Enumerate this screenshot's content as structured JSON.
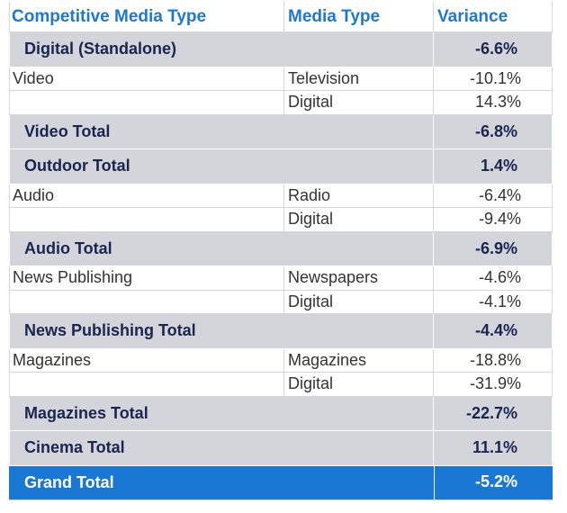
{
  "header": [
    "Competitive Media Type",
    "Media Type",
    "Variance"
  ],
  "rows": [
    {
      "label": "Digital (Standalone)",
      "variance": "-6.6%"
    },
    {
      "category": "Video",
      "media_type": "Television",
      "variance": "-10.1%"
    },
    {
      "media_type": "Digital",
      "variance": "14.3%"
    },
    {
      "label": "Video Total",
      "variance": "-6.8%"
    },
    {
      "label": "Outdoor Total",
      "variance": "1.4%"
    },
    {
      "category": "Audio",
      "media_type": "Radio",
      "variance": "-6.4%"
    },
    {
      "media_type": "Digital",
      "variance": "-9.4%"
    },
    {
      "label": "Audio Total",
      "variance": "-6.9%"
    },
    {
      "category": "News Publishing",
      "media_type": "Newspapers",
      "variance": "-4.6%"
    },
    {
      "media_type": "Digital",
      "variance": "-4.1%"
    },
    {
      "label": "News Publishing Total",
      "variance": "-4.4%"
    },
    {
      "category": "Magazines",
      "media_type": "Magazines",
      "variance": "-18.8%"
    },
    {
      "media_type": "Digital",
      "variance": "-31.9%"
    },
    {
      "label": "Magazines Total",
      "variance": "-22.7%"
    },
    {
      "label": "Cinema Total",
      "variance": "11.1%"
    }
  ],
  "grand_total": {
    "label": "Grand Total",
    "variance": "-5.2%"
  }
}
